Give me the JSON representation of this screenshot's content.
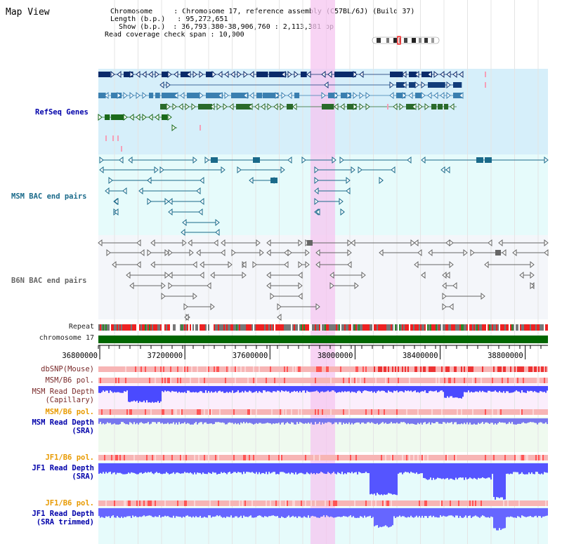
{
  "app": {
    "title": "Map View"
  },
  "info": {
    "chromosome_label": "Chromosome",
    "chromosome_value": "Chromosome 17, reference assembly (C57BL/6J) (Build 37)",
    "length_label": "Length (b.p.)",
    "length_value": "95,272,651",
    "show_label": "Show (b.p.)",
    "show_value": "36,793,380-38,906,760 : 2,113,381 bp",
    "coverage_label": "Read coverage check span",
    "coverage_value": "10,000"
  },
  "tracks": {
    "refseq": "RefSeq Genes",
    "msm_bac": "MSM BAC end pairs",
    "b6n_bac": "B6N BAC end pairs",
    "repeat": "Repeat",
    "chromosome": "chromosome 17",
    "dbsnp": "dbSNP(Mouse)",
    "msm_pol_1": "MSM/B6 pol.",
    "msm_depth_cap_1": "MSM Read Depth",
    "msm_depth_cap_2": "(Capillary)",
    "msm_pol_2": "MSM/B6 pol.",
    "msm_depth_sra_1": "MSM Read Depth",
    "msm_depth_sra_2": "(SRA)",
    "jf1_pol_1": "JF1/B6 pol.",
    "jf1_depth_sra_1": "JF1 Read Depth",
    "jf1_depth_sra_2": "(SRA)",
    "jf1_pol_2": "JF1/B6 pol.",
    "jf1_depth_trim_1": "JF1 Read Depth",
    "jf1_depth_trim_2": "(SRA trimmed)"
  },
  "axis": {
    "ticks": [
      "36800000",
      "37200000",
      "37600000",
      "38000000",
      "38400000",
      "38800000"
    ],
    "tick_values": [
      36800000,
      37200000,
      37600000,
      38000000,
      38400000,
      38800000
    ],
    "range": [
      36793380,
      38906760
    ]
  },
  "colors": {
    "refseq_bg": "#d6effa",
    "bac_bg": "#e6fbfb",
    "highlight": "#f6c6f0",
    "chromosome_bar": "#006600",
    "navy": "#0000aa",
    "teal": "#1a6a8a",
    "gray": "#555555",
    "orange": "#e89a00",
    "depth_blue": "#3333ff",
    "pol_red": "#ff2222",
    "pol_pink": "#f7b5b5"
  },
  "icons": {
    "ideogram": "chromosome-ideogram-icon"
  }
}
